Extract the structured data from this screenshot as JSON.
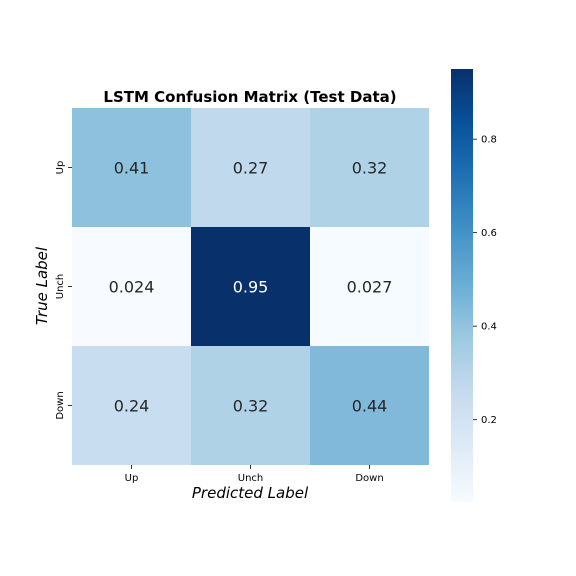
{
  "chart_data": {
    "type": "heatmap",
    "title": "LSTM Confusion Matrix (Test Data)",
    "xlabel": "Predicted Label",
    "ylabel": "True Label",
    "x_categories": [
      "Up",
      "Unch",
      "Down"
    ],
    "y_categories": [
      "Up",
      "Unch",
      "Down"
    ],
    "values": [
      [
        0.41,
        0.27,
        0.32
      ],
      [
        0.024,
        0.95,
        0.027
      ],
      [
        0.24,
        0.32,
        0.44
      ]
    ],
    "colormap": "Blues",
    "colorbar": {
      "range": [
        0.024,
        0.95
      ],
      "ticks": [
        0.2,
        0.4,
        0.6,
        0.8
      ],
      "tick_labels": [
        "0.2",
        "0.4",
        "0.6",
        "0.8"
      ]
    }
  }
}
